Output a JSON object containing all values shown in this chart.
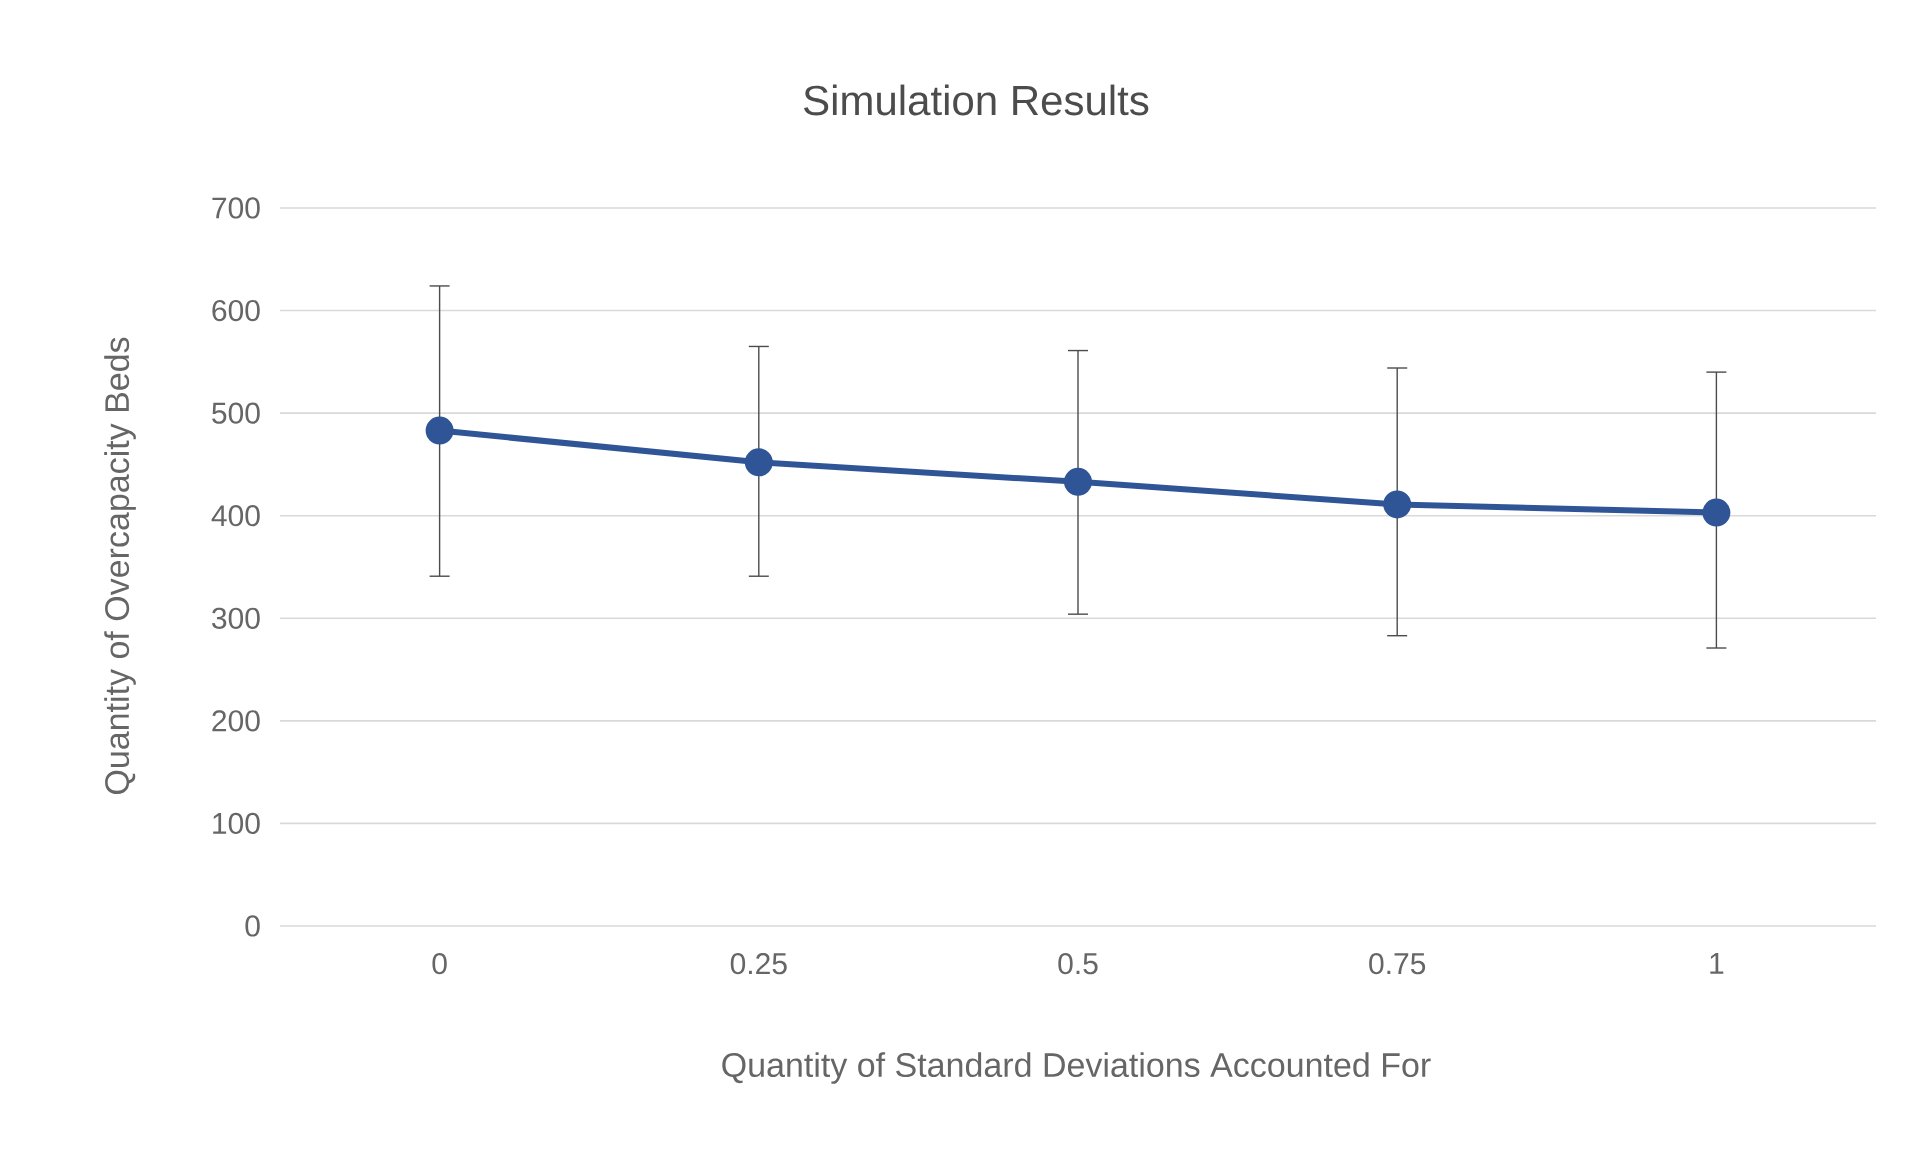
{
  "chart_data": {
    "type": "line",
    "title": "Simulation Results",
    "xlabel": "Quantity of Standard Deviations Accounted For",
    "ylabel": "Quantity of Overcapacity Beds",
    "categories": [
      "0",
      "0.25",
      "0.5",
      "0.75",
      "1"
    ],
    "series": [
      {
        "color": "#2f5597",
        "values": [
          483,
          452,
          433,
          411,
          403
        ],
        "errors": [
          [
            341,
            624
          ],
          [
            341,
            565
          ],
          [
            304,
            561
          ],
          [
            283,
            544
          ],
          [
            271,
            540
          ]
        ]
      }
    ],
    "ylim": [
      0,
      700
    ],
    "yticks": [
      0,
      100,
      200,
      300,
      400,
      500,
      600,
      700
    ],
    "grid": "y",
    "marker": "circle",
    "line_style": "solid"
  }
}
